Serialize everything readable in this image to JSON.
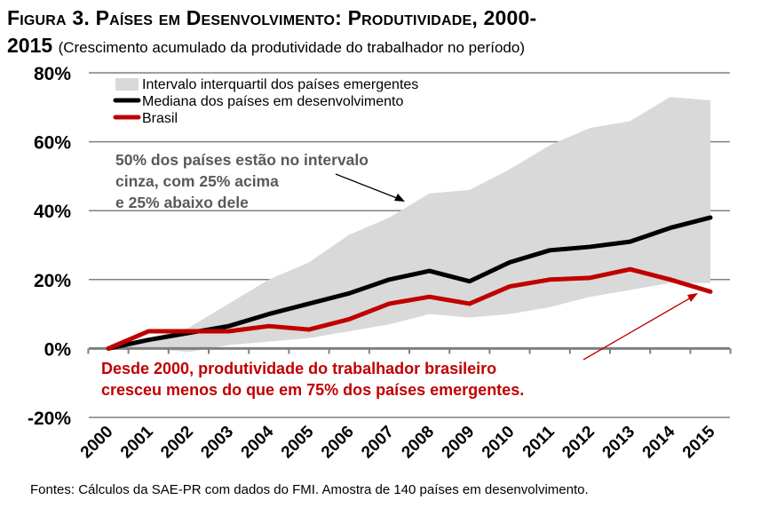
{
  "title_line1": "Figura 3. Países em Desenvolvimento: Produtividade, 2000-",
  "title_line2_num": "2015",
  "subtitle": "(Crescimento acumulado da produtividade do trabalhador no período)",
  "source": "Fontes: Cálculos da SAE-PR com dados do FMI. Amostra de 140 países em desenvolvimento.",
  "colors": {
    "band": "#d9d9d9",
    "median": "#000000",
    "brasil": "#c00000",
    "annotation_red": "#c00000",
    "annotation_gray": "#595959"
  },
  "chart_data": {
    "type": "line",
    "x": [
      "2000",
      "2001",
      "2002",
      "2003",
      "2004",
      "2005",
      "2006",
      "2007",
      "2008",
      "2009",
      "2010",
      "2011",
      "2012",
      "2013",
      "2014",
      "2015"
    ],
    "ylim": [
      -20,
      80
    ],
    "yticks": [
      "80%",
      "60%",
      "40%",
      "20%",
      "0%",
      "-20%"
    ],
    "ytick_values": [
      80,
      60,
      40,
      20,
      0,
      -20
    ],
    "band": {
      "name": "Intervalo interquartil dos países emergentes",
      "upper": [
        0,
        3,
        6,
        13,
        20,
        25,
        33,
        38,
        45,
        46,
        52,
        59,
        64,
        66,
        73,
        72
      ],
      "lower": [
        0,
        0,
        -1,
        1,
        2,
        3,
        5,
        7,
        10,
        9,
        10,
        12,
        15,
        17,
        19,
        19
      ]
    },
    "series": [
      {
        "name": "Mediana dos países em desenvolvimento",
        "values": [
          0,
          2.5,
          4.5,
          6.5,
          10,
          13,
          16,
          20,
          22.5,
          19.5,
          25,
          28.5,
          29.5,
          31,
          35,
          38
        ]
      },
      {
        "name": "Brasil",
        "values": [
          0,
          5,
          5,
          5,
          6.5,
          5.5,
          8.5,
          13,
          15,
          13,
          18,
          20,
          20.5,
          23,
          20,
          16.5
        ]
      }
    ],
    "annotations": {
      "gray": [
        "50% dos países estão no intervalo",
        "cinza, com 25% acima",
        "e 25% abaixo dele"
      ],
      "red": [
        "Desde 2000, produtividade do trabalhador brasileiro",
        "cresceu menos do que em 75% dos países emergentes."
      ]
    }
  }
}
